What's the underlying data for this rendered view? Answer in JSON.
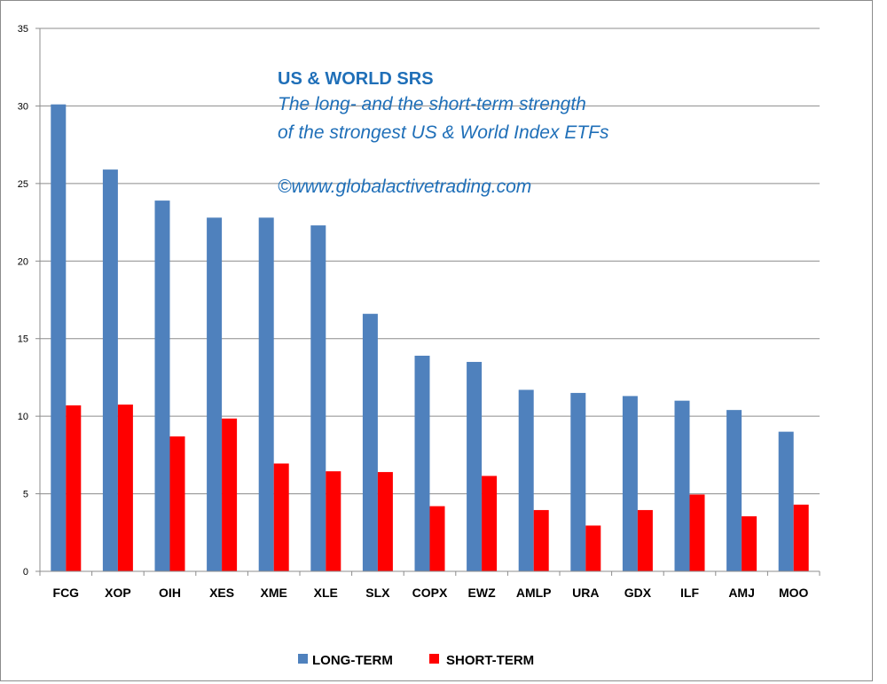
{
  "annotation": {
    "title": "US & WORLD SRS",
    "subtitle_line1": "The long- and the short-term strength",
    "subtitle_line2": "of the  strongest  US & World Index ETFs",
    "copyright": "©www.globalactivetrading.com",
    "color": "#1f6fb8"
  },
  "chart_data": {
    "type": "bar",
    "categories": [
      "FCG",
      "XOP",
      "OIH",
      "XES",
      "XME",
      "XLE",
      "SLX",
      "COPX",
      "EWZ",
      "AMLP",
      "URA",
      "GDX",
      "ILF",
      "AMJ",
      "MOO"
    ],
    "series": [
      {
        "name": "LONG-TERM",
        "color": "#4f81bd",
        "values": [
          30.1,
          25.9,
          23.9,
          22.8,
          22.8,
          22.3,
          16.6,
          13.9,
          13.5,
          11.7,
          11.5,
          11.3,
          11.0,
          10.4,
          9.0
        ]
      },
      {
        "name": "SHORT-TERM",
        "color": "#ff0000",
        "values": [
          10.7,
          10.75,
          8.7,
          9.85,
          6.95,
          6.45,
          6.4,
          4.2,
          6.15,
          3.95,
          2.95,
          3.95,
          4.95,
          3.55,
          4.3
        ]
      }
    ],
    "yticks": [
      0,
      5,
      10,
      15,
      20,
      25,
      30,
      35
    ],
    "ylim": [
      0,
      35
    ],
    "grid": true,
    "legend_position": "bottom"
  }
}
